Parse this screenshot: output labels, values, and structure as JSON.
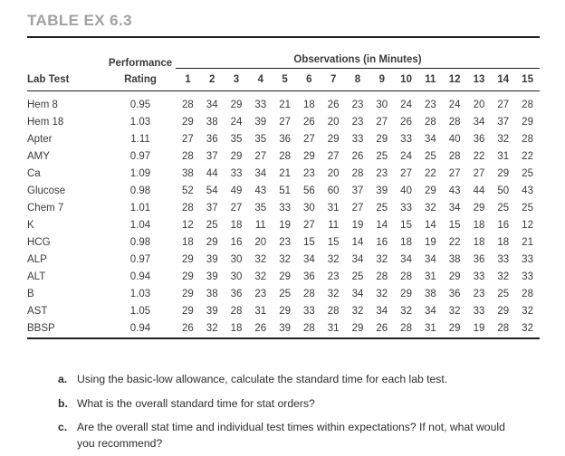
{
  "page": {
    "title": "TABLE EX 6.3"
  },
  "table": {
    "header": {
      "lab_test": "Lab Test",
      "performance_line1": "Performance",
      "performance_line2": "Rating",
      "observations_title": "Observations (in Minutes)",
      "observation_columns": [
        "1",
        "2",
        "3",
        "4",
        "5",
        "6",
        "7",
        "8",
        "9",
        "10",
        "11",
        "12",
        "13",
        "14",
        "15"
      ]
    },
    "rows": [
      {
        "lab_test": "Hem 8",
        "rating": "0.95",
        "observations": [
          28,
          34,
          29,
          33,
          21,
          18,
          26,
          23,
          30,
          24,
          23,
          24,
          20,
          27,
          28
        ]
      },
      {
        "lab_test": "Hem 18",
        "rating": "1.03",
        "observations": [
          29,
          38,
          24,
          39,
          27,
          26,
          20,
          23,
          27,
          26,
          28,
          28,
          34,
          37,
          29
        ]
      },
      {
        "lab_test": "Apter",
        "rating": "1.11",
        "observations": [
          27,
          36,
          35,
          35,
          36,
          27,
          29,
          33,
          29,
          33,
          34,
          40,
          36,
          32,
          28
        ]
      },
      {
        "lab_test": "AMY",
        "rating": "0.97",
        "observations": [
          28,
          37,
          29,
          27,
          28,
          29,
          27,
          26,
          25,
          24,
          25,
          28,
          22,
          31,
          22
        ]
      },
      {
        "lab_test": "Ca",
        "rating": "1.09",
        "observations": [
          38,
          44,
          33,
          34,
          21,
          23,
          20,
          28,
          23,
          27,
          22,
          27,
          27,
          29,
          25
        ]
      },
      {
        "lab_test": "Glucose",
        "rating": "0.98",
        "observations": [
          52,
          54,
          49,
          43,
          51,
          56,
          60,
          37,
          39,
          40,
          29,
          43,
          44,
          50,
          43
        ]
      },
      {
        "lab_test": "Chem 7",
        "rating": "1.01",
        "observations": [
          28,
          37,
          27,
          35,
          33,
          30,
          31,
          27,
          25,
          33,
          32,
          34,
          29,
          25,
          25
        ]
      },
      {
        "lab_test": "K",
        "rating": "1.04",
        "observations": [
          12,
          25,
          18,
          11,
          19,
          27,
          11,
          19,
          14,
          15,
          14,
          15,
          18,
          16,
          12
        ]
      },
      {
        "lab_test": "HCG",
        "rating": "0.98",
        "observations": [
          18,
          29,
          16,
          20,
          23,
          15,
          15,
          14,
          16,
          18,
          19,
          22,
          18,
          18,
          21
        ]
      },
      {
        "lab_test": "ALP",
        "rating": "0.97",
        "observations": [
          29,
          39,
          30,
          32,
          32,
          34,
          32,
          34,
          32,
          34,
          34,
          38,
          36,
          33,
          33
        ]
      },
      {
        "lab_test": "ALT",
        "rating": "0.94",
        "observations": [
          29,
          39,
          30,
          32,
          29,
          36,
          23,
          25,
          28,
          28,
          31,
          29,
          33,
          32,
          33
        ]
      },
      {
        "lab_test": "B",
        "rating": "1.03",
        "observations": [
          29,
          38,
          36,
          23,
          25,
          28,
          32,
          34,
          32,
          29,
          38,
          36,
          23,
          25,
          28
        ]
      },
      {
        "lab_test": "AST",
        "rating": "1.05",
        "observations": [
          29,
          39,
          28,
          31,
          29,
          33,
          28,
          32,
          34,
          32,
          34,
          32,
          33,
          29,
          32
        ]
      },
      {
        "lab_test": "BBSP",
        "rating": "0.94",
        "observations": [
          26,
          32,
          18,
          26,
          39,
          28,
          31,
          29,
          26,
          28,
          31,
          29,
          19,
          28,
          32
        ]
      }
    ]
  },
  "questions": [
    {
      "label": "a.",
      "text": "Using the basic-low allowance, calculate the standard time for each lab test."
    },
    {
      "label": "b.",
      "text": "What is the overall standard time for stat orders?"
    },
    {
      "label": "c.",
      "text": "Are the overall stat time and individual test times within expectations? If not, what would you recommend?"
    }
  ],
  "colors": {
    "title_gray": "#9fa0a2",
    "text_dark": "#3b3b3d",
    "rule_black": "#1f1f21"
  }
}
